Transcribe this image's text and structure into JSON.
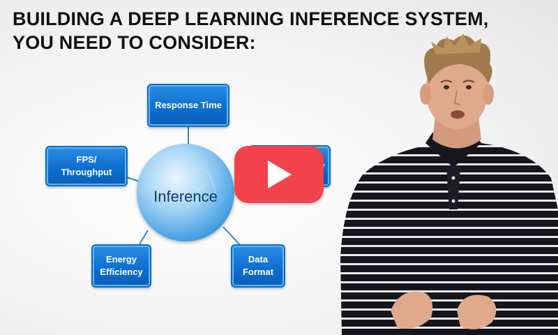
{
  "title": {
    "line1": "BUILDING A DEEP LEARNING INFERENCE SYSTEM,",
    "line2": "YOU NEED TO CONSIDER:"
  },
  "diagram": {
    "center": "Inference",
    "nodes": {
      "response_time": "Response Time",
      "fps_line1": "FPS/",
      "fps_line2": "Throughput",
      "right_partial": "y",
      "energy_line1": "Energy",
      "energy_line2": "Efficiency",
      "data_line1": "Data",
      "data_line2": "Format"
    }
  },
  "video": {
    "play_icon": "play-icon",
    "play_color": "#f2434c"
  }
}
